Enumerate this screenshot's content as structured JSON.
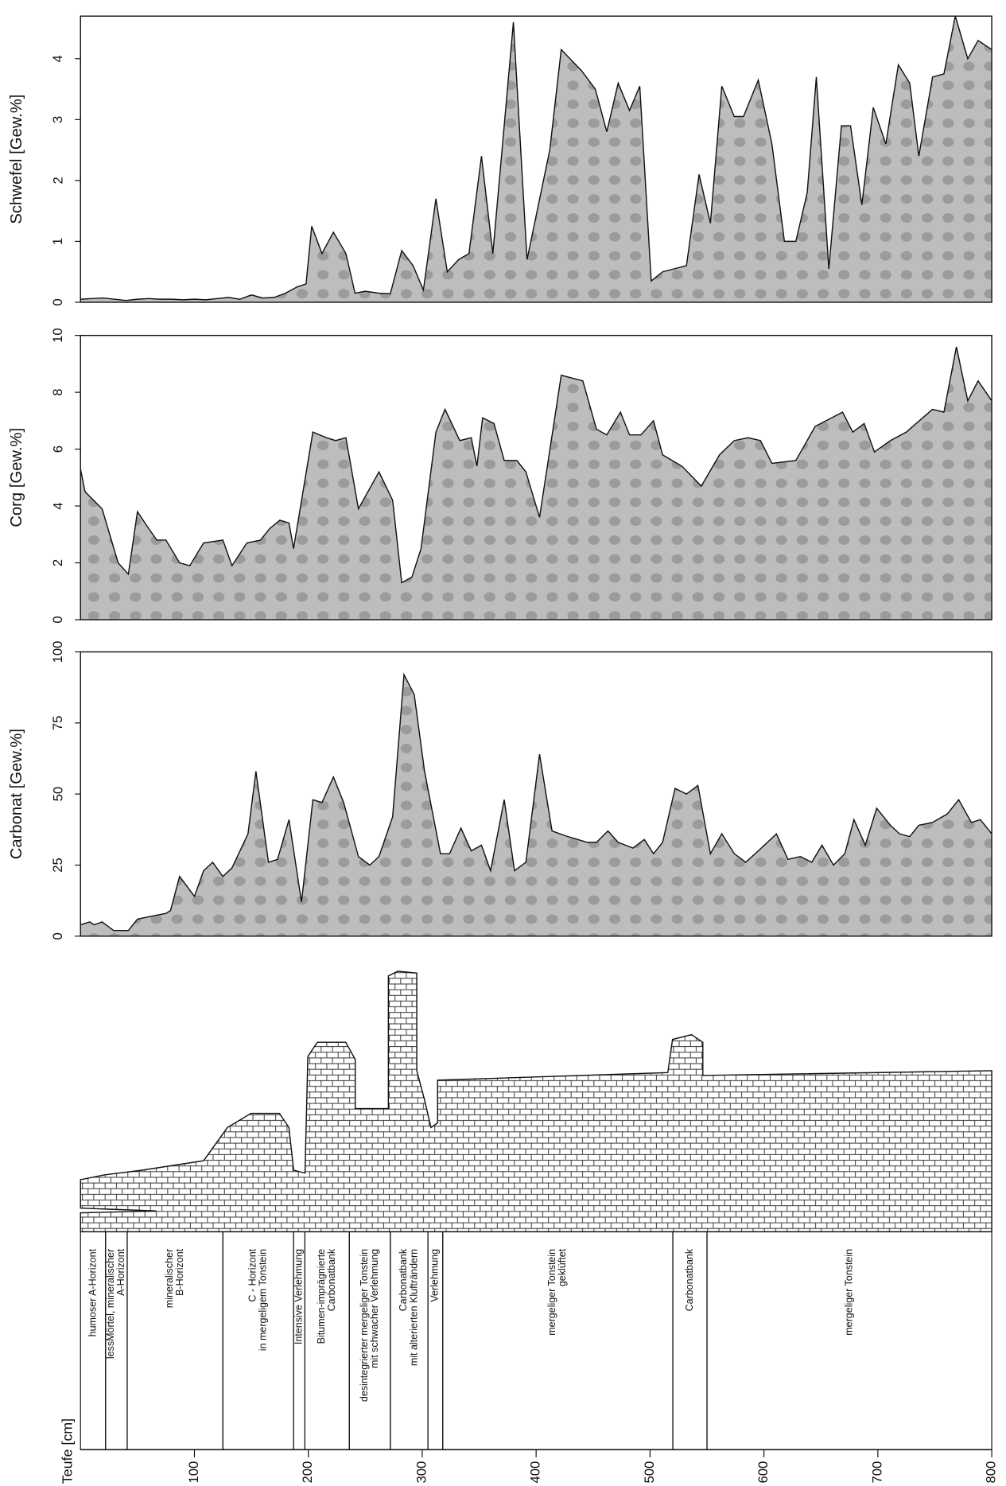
{
  "chart_data": [
    {
      "type": "area",
      "ylabel": "Schwefel [Gew.%]",
      "color": "#bdbdbd",
      "xlim": [
        0,
        800
      ],
      "ylim": [
        0,
        4.7
      ],
      "yticks": [
        0,
        1,
        2,
        3,
        4
      ],
      "x": [
        0,
        10,
        20,
        30,
        40,
        50,
        60,
        70,
        80,
        90,
        100,
        110,
        120,
        130,
        140,
        150,
        160,
        170,
        180,
        190,
        198,
        203,
        212,
        222,
        233,
        241,
        250,
        262,
        272,
        282,
        292,
        301,
        312,
        322,
        332,
        341,
        352,
        362,
        380,
        392,
        412,
        422,
        440,
        452,
        462,
        472,
        482,
        491,
        501,
        511,
        532,
        543,
        553,
        563,
        574,
        582,
        595,
        607,
        618,
        628,
        638,
        646,
        657,
        668,
        676,
        686,
        696,
        707,
        718,
        728,
        736,
        748,
        758,
        768,
        779,
        788,
        800
      ],
      "values": [
        0.05,
        0.06,
        0.07,
        0.05,
        0.03,
        0.05,
        0.06,
        0.05,
        0.05,
        0.04,
        0.05,
        0.04,
        0.06,
        0.08,
        0.05,
        0.12,
        0.07,
        0.08,
        0.15,
        0.25,
        0.3,
        1.25,
        0.8,
        1.15,
        0.8,
        0.15,
        0.18,
        0.15,
        0.14,
        0.85,
        0.6,
        0.2,
        1.7,
        0.5,
        0.7,
        0.8,
        2.4,
        0.8,
        4.6,
        0.7,
        2.5,
        4.15,
        3.8,
        3.5,
        2.8,
        3.6,
        3.15,
        3.55,
        0.35,
        0.5,
        0.6,
        2.1,
        1.3,
        3.55,
        3.05,
        3.05,
        3.65,
        2.6,
        1.0,
        1.0,
        1.8,
        3.7,
        0.55,
        2.9,
        2.9,
        1.6,
        3.2,
        2.6,
        3.9,
        3.6,
        2.4,
        3.7,
        3.75,
        4.7,
        4.0,
        4.3,
        4.15
      ]
    },
    {
      "type": "area",
      "ylabel": "Corg [Gew.%]",
      "color": "#bdbdbd",
      "xlim": [
        0,
        800
      ],
      "ylim": [
        0,
        10
      ],
      "yticks": [
        0,
        2,
        4,
        6,
        8,
        10
      ],
      "x": [
        0,
        4,
        19,
        33,
        42,
        50,
        60,
        67,
        75,
        87,
        96,
        108,
        125,
        133,
        146,
        158,
        166,
        175,
        183,
        187,
        204,
        216,
        224,
        233,
        244,
        262,
        274,
        282,
        291,
        299,
        312,
        320,
        333,
        343,
        348,
        353,
        363,
        372,
        383,
        391,
        403,
        422,
        441,
        453,
        462,
        474,
        482,
        492,
        503,
        511,
        528,
        545,
        561,
        574,
        586,
        597,
        607,
        628,
        645,
        669,
        678,
        688,
        697,
        711,
        725,
        748,
        758,
        769,
        779,
        788,
        800
      ],
      "values": [
        5.3,
        4.5,
        3.9,
        2.0,
        1.6,
        3.8,
        3.2,
        2.8,
        2.8,
        2.0,
        1.9,
        2.7,
        2.8,
        1.9,
        2.7,
        2.8,
        3.2,
        3.5,
        3.4,
        2.5,
        6.6,
        6.4,
        6.3,
        6.4,
        3.9,
        5.2,
        4.2,
        1.3,
        1.5,
        2.5,
        6.6,
        7.4,
        6.3,
        6.4,
        5.4,
        7.1,
        6.9,
        5.6,
        5.6,
        5.2,
        3.6,
        8.6,
        8.4,
        6.7,
        6.5,
        7.3,
        6.5,
        6.5,
        7.0,
        5.8,
        5.4,
        4.7,
        5.8,
        6.3,
        6.4,
        6.3,
        5.5,
        5.6,
        6.8,
        7.3,
        6.6,
        6.9,
        5.9,
        6.3,
        6.6,
        7.4,
        7.3,
        9.6,
        7.7,
        8.4,
        7.7
      ]
    },
    {
      "type": "area",
      "ylabel": "Carbonat [Gew.%]",
      "color": "#bdbdbd",
      "xlim": [
        0,
        800
      ],
      "ylim": [
        0,
        100
      ],
      "yticks": [
        0,
        25,
        50,
        75,
        100
      ],
      "x": [
        0,
        8,
        12,
        19,
        29,
        42,
        50,
        62,
        75,
        79,
        87,
        100,
        108,
        116,
        125,
        133,
        147,
        154,
        165,
        173,
        183,
        194,
        204,
        212,
        222,
        231,
        244,
        254,
        262,
        274,
        284,
        293,
        302,
        316,
        324,
        334,
        343,
        352,
        360,
        372,
        381,
        391,
        403,
        414,
        428,
        445,
        453,
        463,
        472,
        485,
        495,
        503,
        511,
        522,
        532,
        542,
        553,
        563,
        574,
        584,
        595,
        611,
        621,
        632,
        642,
        651,
        661,
        671,
        679,
        689,
        699,
        711,
        719,
        728,
        736,
        748,
        761,
        771,
        782,
        790,
        800
      ],
      "values": [
        4,
        5,
        4,
        5,
        2,
        2,
        6,
        7,
        8,
        9,
        21,
        14,
        23,
        26,
        21,
        24,
        36,
        58,
        26,
        27,
        41,
        12,
        48,
        47,
        56,
        47,
        28,
        25,
        28,
        42,
        92,
        85,
        58,
        29,
        29,
        38,
        30,
        32,
        23,
        48,
        23,
        26,
        64,
        37,
        35,
        33,
        33,
        37,
        33,
        31,
        34,
        29,
        33,
        52,
        50,
        53,
        29,
        36,
        29,
        26,
        30,
        36,
        27,
        28,
        26,
        32,
        25,
        29,
        41,
        32,
        45,
        39,
        36,
        35,
        39,
        40,
        43,
        48,
        40,
        41,
        36
      ]
    },
    {
      "type": "section",
      "xlabel": "Teufe [cm]",
      "xlim": [
        0,
        800
      ],
      "xticks": [
        100,
        200,
        300,
        400,
        500,
        600,
        700,
        800
      ],
      "units": [
        {
          "label": [
            "humoser A-Horizont"
          ],
          "from": 0,
          "to": 22
        },
        {
          "label": [
            "lessMörtel, mineralischer",
            "A-Horizont"
          ],
          "from": 22,
          "to": 41
        },
        {
          "label": [
            "mineralischer",
            "B-Horizont"
          ],
          "from": 41,
          "to": 125
        },
        {
          "label": [
            "C - Horizont",
            "in mergeligem Tonstein"
          ],
          "from": 125,
          "to": 187
        },
        {
          "label": [
            "Intensive Verlehmung"
          ],
          "from": 187,
          "to": 197
        },
        {
          "label": [
            "Bitumen-imprägnierte",
            "Carbonatbank"
          ],
          "from": 197,
          "to": 236
        },
        {
          "label": [
            "desintegrierter mergeliger Tonstein",
            "mit schwacher Verlehmung"
          ],
          "from": 236,
          "to": 272
        },
        {
          "label": [
            "Carbonatbank",
            "mit alterierten Klufträndern"
          ],
          "from": 272,
          "to": 305
        },
        {
          "label": [
            "Verlehmung"
          ],
          "from": 305,
          "to": 318
        },
        {
          "label": [
            "mergeliger Tonstein",
            "geklüftet"
          ],
          "from": 318,
          "to": 520
        },
        {
          "label": [
            "Carbonatbank"
          ],
          "from": 520,
          "to": 550
        },
        {
          "label": [
            "mergeliger Tonstein"
          ],
          "from": 550,
          "to": 800
        }
      ]
    }
  ]
}
